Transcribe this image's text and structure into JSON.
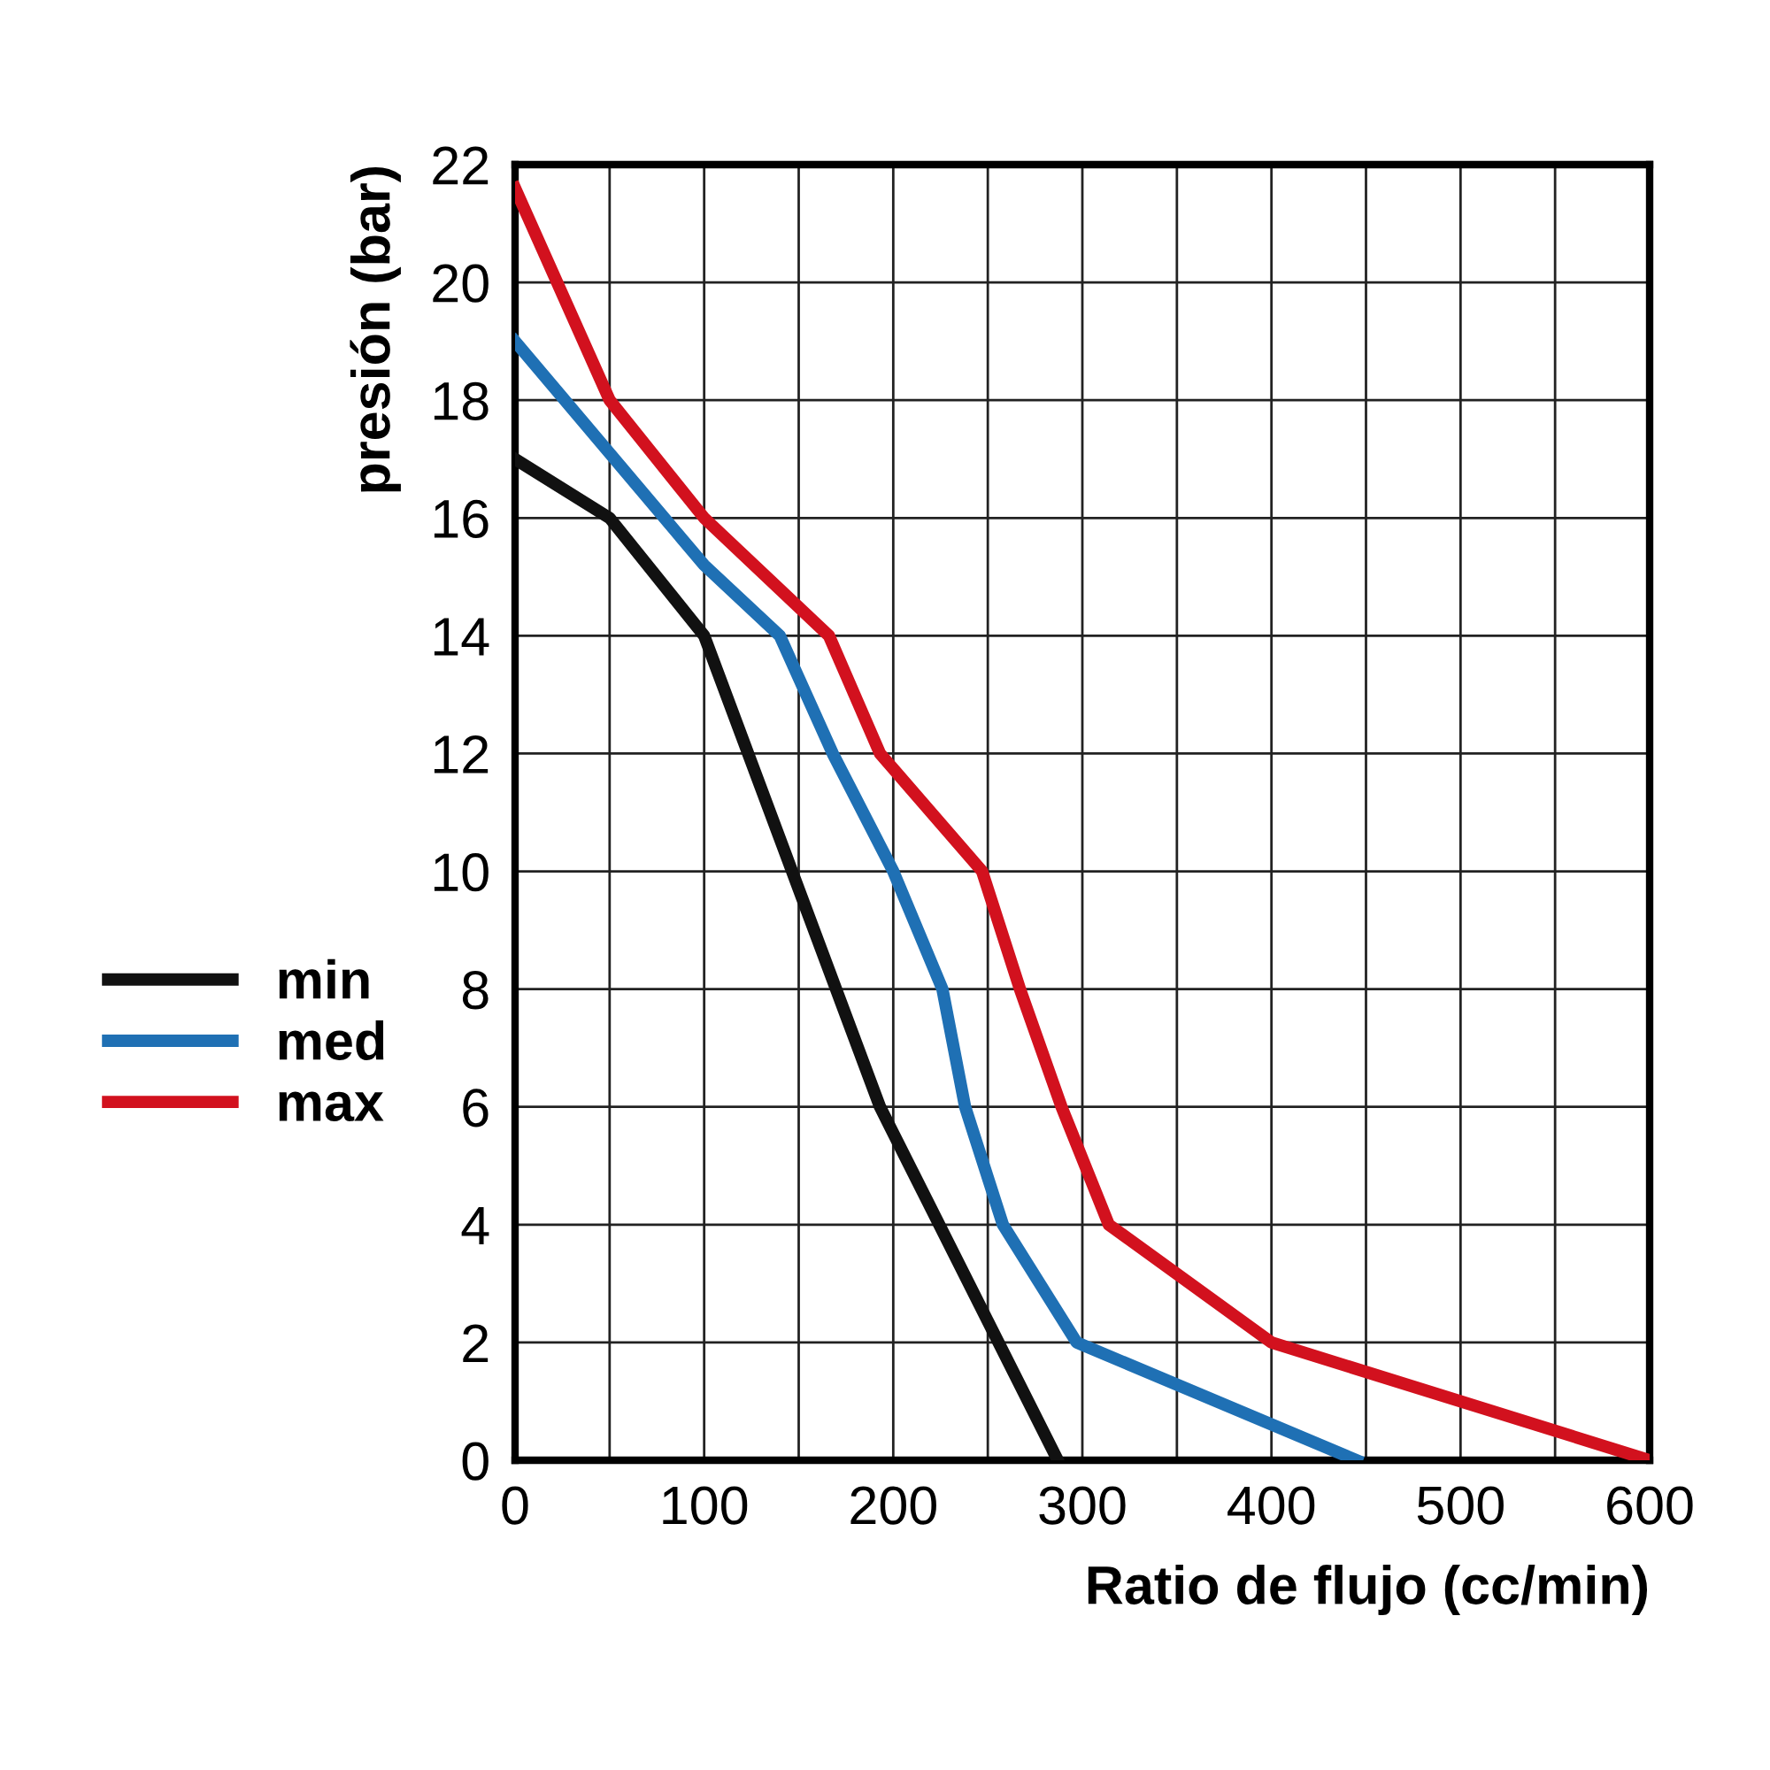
{
  "chart_data": {
    "type": "line",
    "xlabel": "Ratio de flujo (cc/min)",
    "ylabel": "presión (bar)",
    "xlim": [
      0,
      600
    ],
    "ylim": [
      0,
      22
    ],
    "xticks": [
      0,
      {
        "value": 50,
        "label": null
      },
      100,
      {
        "value": 150,
        "label": null
      },
      200,
      {
        "value": 250,
        "label": null
      },
      300,
      {
        "value": 350,
        "label": null
      },
      400,
      {
        "value": 450,
        "label": null
      },
      500,
      {
        "value": 550,
        "label": null
      },
      600
    ],
    "yticks": [
      0,
      2,
      4,
      6,
      8,
      10,
      12,
      14,
      16,
      18,
      20,
      22
    ],
    "grid": true,
    "legend": "left",
    "marker": "none",
    "line_style": "solid",
    "series": [
      {
        "name": "min",
        "color": "#111111",
        "x": [
          0,
          50,
          100,
          193,
          287
        ],
        "values": [
          17,
          16,
          14,
          6,
          0
        ]
      },
      {
        "name": "med",
        "color": "#1f70b4",
        "x": [
          0,
          100,
          140,
          168,
          200,
          226,
          238,
          258,
          297,
          445
        ],
        "values": [
          19,
          15.2,
          14,
          12,
          10,
          8,
          6,
          4,
          2,
          0
        ]
      },
      {
        "name": "max",
        "color": "#d2111e",
        "x": [
          0,
          50,
          100,
          166,
          193,
          247,
          267,
          289,
          314,
          400,
          600
        ],
        "values": [
          21.6,
          18,
          16,
          14,
          12,
          10,
          8,
          6,
          4,
          2,
          0
        ]
      }
    ]
  }
}
